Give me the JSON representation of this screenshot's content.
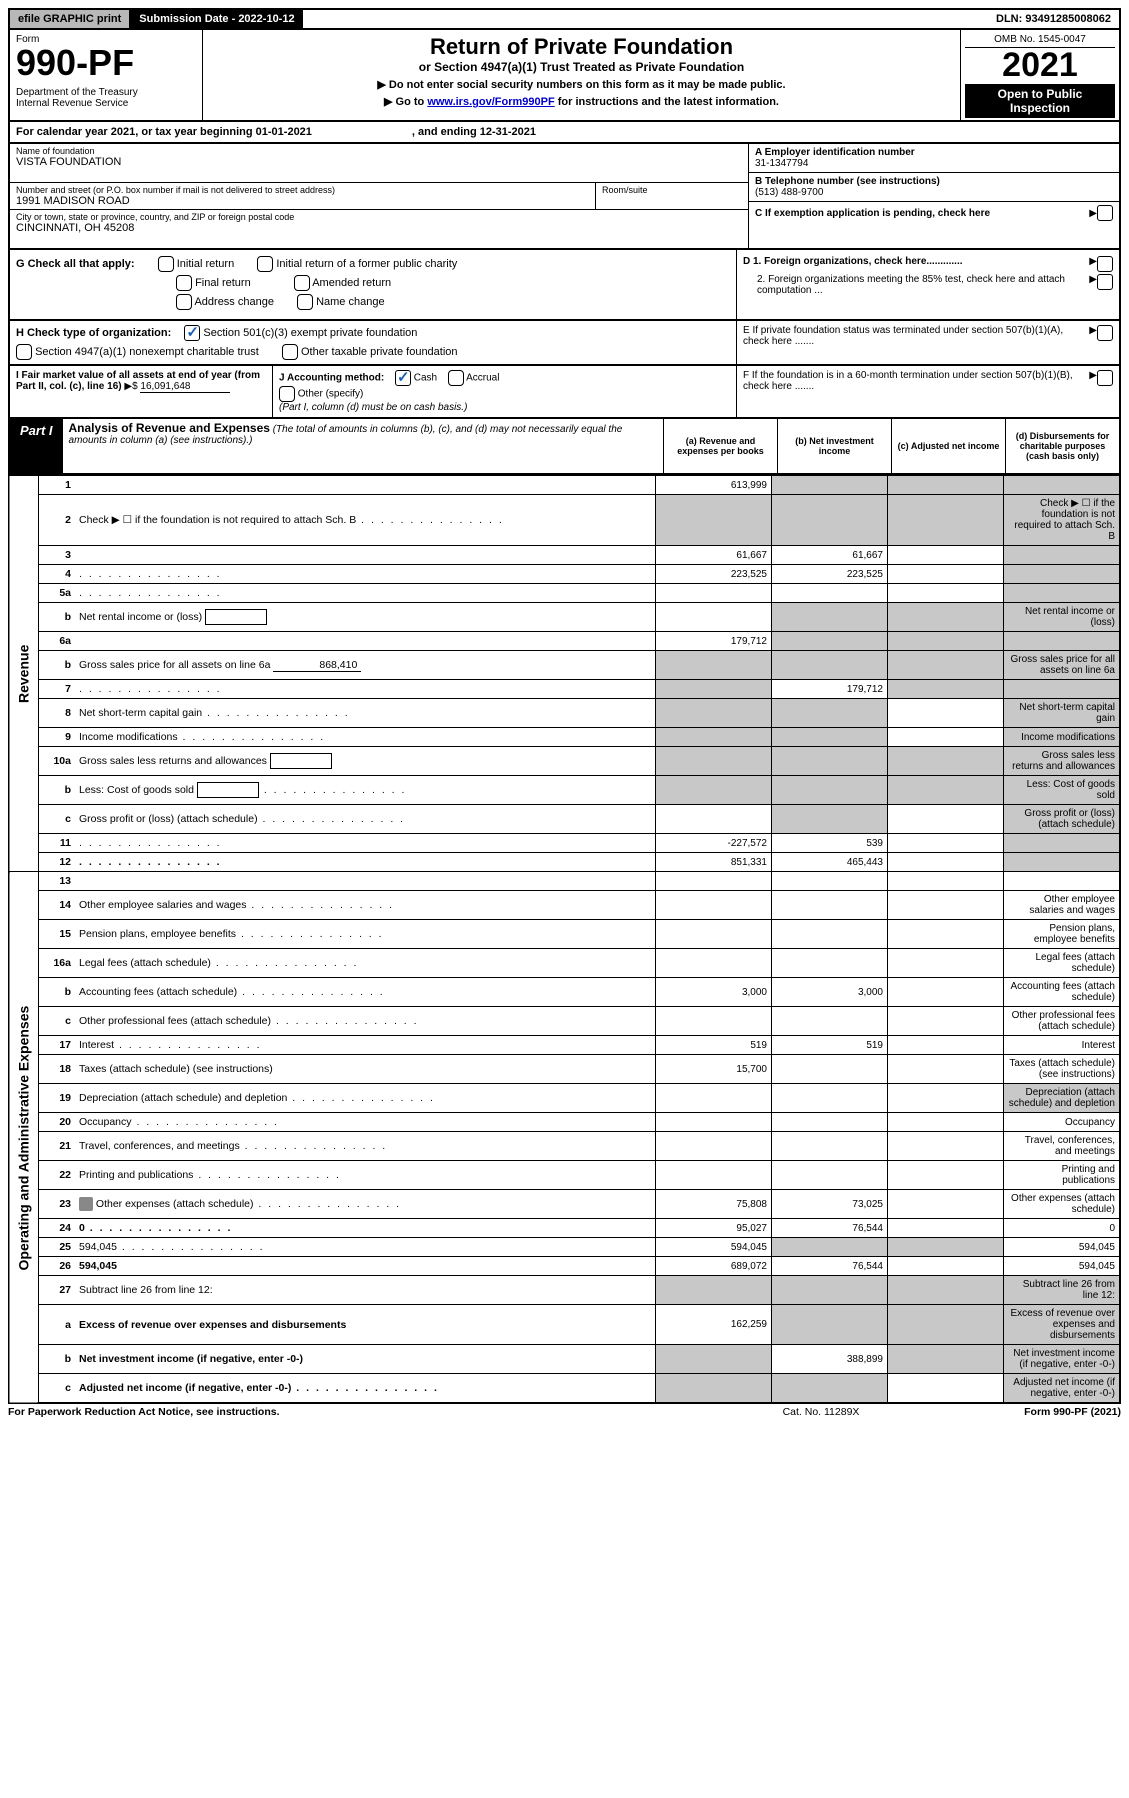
{
  "topbar": {
    "efile": "efile GRAPHIC print",
    "subdate": "Submission Date - 2022-10-12",
    "dln": "DLN: 93491285008062"
  },
  "header": {
    "form_label": "Form",
    "form_no": "990-PF",
    "dept": "Department of the Treasury\nInternal Revenue Service",
    "title": "Return of Private Foundation",
    "subtitle": "or Section 4947(a)(1) Trust Treated as Private Foundation",
    "instr1": "▶ Do not enter social security numbers on this form as it may be made public.",
    "instr2_pre": "▶ Go to ",
    "instr2_link": "www.irs.gov/Form990PF",
    "instr2_post": " for instructions and the latest information.",
    "omb": "OMB No. 1545-0047",
    "year": "2021",
    "open": "Open to Public Inspection"
  },
  "calendar": {
    "text": "For calendar year 2021, or tax year beginning 01-01-2021",
    "ending": ", and ending 12-31-2021"
  },
  "foundation": {
    "name_label": "Name of foundation",
    "name": "VISTA FOUNDATION",
    "addr_label": "Number and street (or P.O. box number if mail is not delivered to street address)",
    "addr": "1991 MADISON ROAD",
    "room_label": "Room/suite",
    "room": "",
    "city_label": "City or town, state or province, country, and ZIP or foreign postal code",
    "city": "CINCINNATI, OH  45208"
  },
  "right": {
    "a_label": "A Employer identification number",
    "a_val": "31-1347794",
    "b_label": "B Telephone number (see instructions)",
    "b_val": "(513) 488-9700",
    "c_label": "C If exemption application is pending, check here",
    "d1": "D 1. Foreign organizations, check here.............",
    "d2": "2. Foreign organizations meeting the 85% test, check here and attach computation ...",
    "e": "E  If private foundation status was terminated under section 507(b)(1)(A), check here .......",
    "f": "F  If the foundation is in a 60-month termination under section 507(b)(1)(B), check here .......",
    "arrow": "▶"
  },
  "g": {
    "label": "G Check all that apply:",
    "opts": [
      "Initial return",
      "Final return",
      "Address change",
      "Initial return of a former public charity",
      "Amended return",
      "Name change"
    ]
  },
  "h": {
    "label": "H Check type of organization:",
    "opt1": "Section 501(c)(3) exempt private foundation",
    "opt2": "Section 4947(a)(1) nonexempt charitable trust",
    "opt3": "Other taxable private foundation"
  },
  "i": {
    "label": "I Fair market value of all assets at end of year (from Part II, col. (c), line 16)",
    "arrow": " ▶$ ",
    "val": "16,091,648"
  },
  "j": {
    "label": "J Accounting method:",
    "cash": "Cash",
    "accrual": "Accrual",
    "other": "Other (specify)",
    "note": "(Part I, column (d) must be on cash basis.)"
  },
  "part1": {
    "label": "Part I",
    "title": "Analysis of Revenue and Expenses",
    "title_note": " (The total of amounts in columns (b), (c), and (d) may not necessarily equal the amounts in column (a) (see instructions).)",
    "cols": {
      "a": "(a)  Revenue and expenses per books",
      "b": "(b)  Net investment income",
      "c": "(c)  Adjusted net income",
      "d": "(d)  Disbursements for charitable purposes (cash basis only)"
    },
    "side_rev": "Revenue",
    "side_exp": "Operating and Administrative Expenses",
    "rows": [
      {
        "n": "1",
        "d": "",
        "a": "613,999",
        "b": "",
        "c": "",
        "shade_bcd": true
      },
      {
        "n": "2",
        "d": "Check ▶ ☐ if the foundation is not required to attach Sch. B",
        "dots": true,
        "all_shade": true
      },
      {
        "n": "3",
        "d": "",
        "a": "61,667",
        "b": "61,667",
        "c": "",
        "d_shade": true
      },
      {
        "n": "4",
        "d": "",
        "dots": true,
        "a": "223,525",
        "b": "223,525",
        "c": "",
        "d_shade": true
      },
      {
        "n": "5a",
        "d": "",
        "dots": true,
        "a": "",
        "b": "",
        "c": "",
        "d_shade": true
      },
      {
        "n": "b",
        "d": "Net rental income or (loss)",
        "box": true,
        "bcd_shade": true
      },
      {
        "n": "6a",
        "d": "",
        "a": "179,712",
        "b": "",
        "c": "",
        "bcd_shade": true
      },
      {
        "n": "b",
        "d": "Gross sales price for all assets on line 6a",
        "under": "868,410",
        "all_shade": true
      },
      {
        "n": "7",
        "d": "",
        "dots": true,
        "a": "",
        "b": "179,712",
        "c": "",
        "a_shade": true,
        "cd_shade": true
      },
      {
        "n": "8",
        "d": "Net short-term capital gain",
        "dots": true,
        "ab_shade": true,
        "d_shade": true
      },
      {
        "n": "9",
        "d": "Income modifications",
        "dots": true,
        "ab_shade": true,
        "d_shade": true
      },
      {
        "n": "10a",
        "d": "Gross sales less returns and allowances",
        "box": true,
        "all_shade": true
      },
      {
        "n": "b",
        "d": "Less: Cost of goods sold",
        "dots": true,
        "box": true,
        "all_shade": true
      },
      {
        "n": "c",
        "d": "Gross profit or (loss) (attach schedule)",
        "dots": true,
        "b_shade": true,
        "d_shade": true
      },
      {
        "n": "11",
        "d": "",
        "dots": true,
        "a": "-227,572",
        "b": "539",
        "c": "",
        "d_shade": true
      },
      {
        "n": "12",
        "d": "",
        "dots": true,
        "bold": true,
        "a": "851,331",
        "b": "465,443",
        "c": "",
        "d_shade": true
      },
      {
        "n": "13",
        "d": "",
        "a": "",
        "b": "",
        "c": ""
      },
      {
        "n": "14",
        "d": "Other employee salaries and wages",
        "dots": true
      },
      {
        "n": "15",
        "d": "Pension plans, employee benefits",
        "dots": true
      },
      {
        "n": "16a",
        "d": "Legal fees (attach schedule)",
        "dots": true
      },
      {
        "n": "b",
        "d": "Accounting fees (attach schedule)",
        "dots": true,
        "a": "3,000",
        "b": "3,000"
      },
      {
        "n": "c",
        "d": "Other professional fees (attach schedule)",
        "dots": true
      },
      {
        "n": "17",
        "d": "Interest",
        "dots": true,
        "a": "519",
        "b": "519"
      },
      {
        "n": "18",
        "d": "Taxes (attach schedule) (see instructions)",
        "a": "15,700"
      },
      {
        "n": "19",
        "d": "Depreciation (attach schedule) and depletion",
        "dots": true,
        "d_shade": true
      },
      {
        "n": "20",
        "d": "Occupancy",
        "dots": true
      },
      {
        "n": "21",
        "d": "Travel, conferences, and meetings",
        "dots": true
      },
      {
        "n": "22",
        "d": "Printing and publications",
        "dots": true
      },
      {
        "n": "23",
        "d": "Other expenses (attach schedule)",
        "dots": true,
        "icon": true,
        "a": "75,808",
        "b": "73,025"
      },
      {
        "n": "24",
        "d": "0",
        "dots": true,
        "bold": true,
        "a": "95,027",
        "b": "76,544",
        "c": ""
      },
      {
        "n": "25",
        "d": "594,045",
        "dots": true,
        "a": "594,045",
        "b": "",
        "c": "",
        "b_shade": true,
        "c_shade": true
      },
      {
        "n": "26",
        "d": "594,045",
        "bold": true,
        "a": "689,072",
        "b": "76,544",
        "c": ""
      },
      {
        "n": "27",
        "d": "Subtract line 26 from line 12:",
        "all_shade": true
      },
      {
        "n": "a",
        "d": "Excess of revenue over expenses and disbursements",
        "bold": true,
        "a": "162,259",
        "bcd_shade": true
      },
      {
        "n": "b",
        "d": "Net investment income (if negative, enter -0-)",
        "bold": true,
        "b": "388,899",
        "a_shade": true,
        "cd_shade": true
      },
      {
        "n": "c",
        "d": "Adjusted net income (if negative, enter -0-)",
        "dots": true,
        "bold": true,
        "ab_shade": true,
        "d_shade": true
      }
    ]
  },
  "footer": {
    "l": "For Paperwork Reduction Act Notice, see instructions.",
    "m": "Cat. No. 11289X",
    "r": "Form 990-PF (2021)"
  },
  "colors": {
    "shade": "#c8c8c8",
    "link": "#0000cc",
    "check": "#1a5fb4"
  }
}
